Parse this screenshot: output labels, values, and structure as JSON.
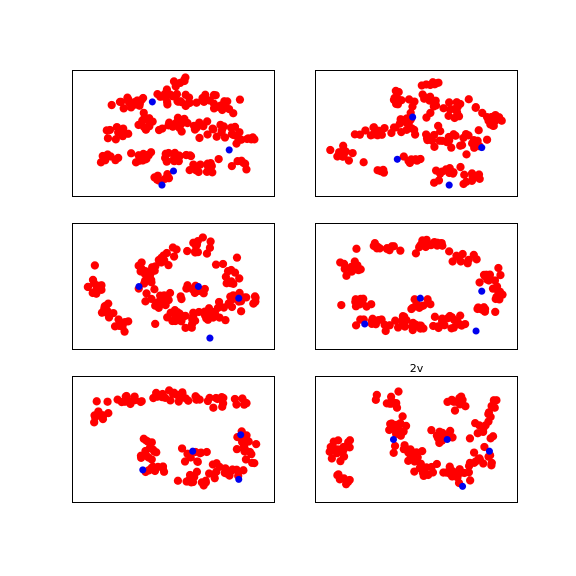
{
  "colors": {
    "points": "#ff0000",
    "highlight": "#0000ee"
  },
  "chart_data": [
    {
      "type": "scatter",
      "title": "",
      "xlabel": "",
      "ylabel": "",
      "axis_ticks": "none",
      "grid": false,
      "xlim": [
        0,
        100
      ],
      "ylim": [
        0,
        100
      ],
      "clusters": [
        {
          "cx": 28,
          "cy": 76,
          "rx": 9,
          "ry": 6,
          "n": 16
        },
        {
          "cx": 48,
          "cy": 82,
          "rx": 7,
          "ry": 5,
          "n": 12
        },
        {
          "cx": 63,
          "cy": 78,
          "rx": 10,
          "ry": 6,
          "n": 16
        },
        {
          "cx": 78,
          "cy": 74,
          "rx": 8,
          "ry": 6,
          "n": 12
        },
        {
          "cx": 20,
          "cy": 50,
          "rx": 8,
          "ry": 6,
          "n": 12
        },
        {
          "cx": 38,
          "cy": 58,
          "rx": 10,
          "ry": 7,
          "n": 16
        },
        {
          "cx": 56,
          "cy": 56,
          "rx": 9,
          "ry": 7,
          "n": 14
        },
        {
          "cx": 74,
          "cy": 52,
          "rx": 10,
          "ry": 7,
          "n": 16
        },
        {
          "cx": 88,
          "cy": 46,
          "rx": 6,
          "ry": 6,
          "n": 10
        },
        {
          "cx": 30,
          "cy": 30,
          "rx": 10,
          "ry": 5,
          "n": 14
        },
        {
          "cx": 52,
          "cy": 30,
          "rx": 11,
          "ry": 6,
          "n": 16
        },
        {
          "cx": 68,
          "cy": 22,
          "rx": 8,
          "ry": 7,
          "n": 12
        },
        {
          "cx": 42,
          "cy": 12,
          "rx": 6,
          "ry": 4,
          "n": 8
        },
        {
          "cx": 85,
          "cy": 25,
          "rx": 6,
          "ry": 5,
          "n": 8
        },
        {
          "cx": 15,
          "cy": 30,
          "rx": 5,
          "ry": 4,
          "n": 7
        },
        {
          "cx": 54,
          "cy": 94,
          "rx": 5,
          "ry": 3,
          "n": 6
        }
      ],
      "highlights": [
        {
          "x": 39,
          "y": 77
        },
        {
          "x": 79,
          "y": 36
        },
        {
          "x": 50,
          "y": 18
        },
        {
          "x": 44,
          "y": 6
        }
      ]
    },
    {
      "type": "scatter",
      "title": "",
      "xlabel": "",
      "ylabel": "",
      "axis_ticks": "none",
      "grid": false,
      "xlim": [
        0,
        100
      ],
      "ylim": [
        0,
        100
      ],
      "clusters": [
        {
          "cx": 12,
          "cy": 32,
          "rx": 7,
          "ry": 6,
          "n": 12
        },
        {
          "cx": 28,
          "cy": 52,
          "rx": 9,
          "ry": 7,
          "n": 14
        },
        {
          "cx": 46,
          "cy": 58,
          "rx": 10,
          "ry": 10,
          "n": 18
        },
        {
          "cx": 62,
          "cy": 48,
          "rx": 8,
          "ry": 8,
          "n": 14
        },
        {
          "cx": 78,
          "cy": 40,
          "rx": 9,
          "ry": 10,
          "n": 16
        },
        {
          "cx": 90,
          "cy": 62,
          "rx": 6,
          "ry": 8,
          "n": 12
        },
        {
          "cx": 72,
          "cy": 72,
          "rx": 10,
          "ry": 6,
          "n": 14
        },
        {
          "cx": 56,
          "cy": 78,
          "rx": 8,
          "ry": 5,
          "n": 10
        },
        {
          "cx": 38,
          "cy": 80,
          "rx": 8,
          "ry": 5,
          "n": 10
        },
        {
          "cx": 66,
          "cy": 14,
          "rx": 9,
          "ry": 6,
          "n": 12
        },
        {
          "cx": 80,
          "cy": 12,
          "rx": 5,
          "ry": 5,
          "n": 8
        },
        {
          "cx": 58,
          "cy": 92,
          "rx": 6,
          "ry": 3,
          "n": 7
        },
        {
          "cx": 48,
          "cy": 28,
          "rx": 6,
          "ry": 5,
          "n": 9
        },
        {
          "cx": 31,
          "cy": 18,
          "rx": 4,
          "ry": 4,
          "n": 5
        }
      ],
      "highlights": [
        {
          "x": 48,
          "y": 64
        },
        {
          "x": 40,
          "y": 28
        },
        {
          "x": 84,
          "y": 38
        },
        {
          "x": 67,
          "y": 6
        }
      ]
    },
    {
      "type": "scatter",
      "title": "",
      "xlabel": "",
      "ylabel": "",
      "axis_ticks": "none",
      "grid": false,
      "xlim": [
        0,
        100
      ],
      "ylim": [
        0,
        100
      ],
      "clusters": [
        {
          "cx": 10,
          "cy": 50,
          "rx": 4,
          "ry": 10,
          "n": 12
        },
        {
          "cx": 16,
          "cy": 30,
          "rx": 5,
          "ry": 8,
          "n": 10
        },
        {
          "cx": 22,
          "cy": 16,
          "rx": 5,
          "ry": 5,
          "n": 7
        },
        {
          "cx": 35,
          "cy": 58,
          "rx": 6,
          "ry": 12,
          "n": 16
        },
        {
          "cx": 42,
          "cy": 36,
          "rx": 8,
          "ry": 10,
          "n": 16
        },
        {
          "cx": 55,
          "cy": 22,
          "rx": 10,
          "ry": 8,
          "n": 18
        },
        {
          "cx": 72,
          "cy": 26,
          "rx": 10,
          "ry": 8,
          "n": 18
        },
        {
          "cx": 84,
          "cy": 40,
          "rx": 6,
          "ry": 8,
          "n": 12
        },
        {
          "cx": 80,
          "cy": 62,
          "rx": 5,
          "ry": 12,
          "n": 12
        },
        {
          "cx": 62,
          "cy": 84,
          "rx": 10,
          "ry": 6,
          "n": 14
        },
        {
          "cx": 46,
          "cy": 74,
          "rx": 6,
          "ry": 6,
          "n": 10
        },
        {
          "cx": 60,
          "cy": 46,
          "rx": 8,
          "ry": 6,
          "n": 12
        },
        {
          "cx": 92,
          "cy": 38,
          "rx": 3,
          "ry": 4,
          "n": 5
        }
      ],
      "highlights": [
        {
          "x": 32,
          "y": 50
        },
        {
          "x": 63,
          "y": 50
        },
        {
          "x": 84,
          "y": 40
        },
        {
          "x": 69,
          "y": 6
        }
      ]
    },
    {
      "type": "scatter",
      "title": "",
      "xlabel": "",
      "ylabel": "",
      "axis_ticks": "none",
      "grid": false,
      "xlim": [
        0,
        100
      ],
      "ylim": [
        0,
        100
      ],
      "clusters": [
        {
          "cx": 16,
          "cy": 68,
          "rx": 8,
          "ry": 4,
          "n": 10
        },
        {
          "cx": 34,
          "cy": 82,
          "rx": 12,
          "ry": 4,
          "n": 14
        },
        {
          "cx": 56,
          "cy": 86,
          "rx": 10,
          "ry": 4,
          "n": 12
        },
        {
          "cx": 74,
          "cy": 76,
          "rx": 8,
          "ry": 5,
          "n": 10
        },
        {
          "cx": 86,
          "cy": 58,
          "rx": 6,
          "ry": 7,
          "n": 10
        },
        {
          "cx": 92,
          "cy": 44,
          "rx": 4,
          "ry": 8,
          "n": 8
        },
        {
          "cx": 20,
          "cy": 34,
          "rx": 8,
          "ry": 6,
          "n": 12
        },
        {
          "cx": 30,
          "cy": 18,
          "rx": 10,
          "ry": 6,
          "n": 14
        },
        {
          "cx": 50,
          "cy": 16,
          "rx": 12,
          "ry": 6,
          "n": 16
        },
        {
          "cx": 70,
          "cy": 20,
          "rx": 12,
          "ry": 7,
          "n": 16
        },
        {
          "cx": 84,
          "cy": 30,
          "rx": 6,
          "ry": 5,
          "n": 8
        },
        {
          "cx": 52,
          "cy": 36,
          "rx": 6,
          "ry": 6,
          "n": 10
        },
        {
          "cx": 44,
          "cy": 24,
          "rx": 4,
          "ry": 4,
          "n": 5
        }
      ],
      "highlights": [
        {
          "x": 52,
          "y": 40
        },
        {
          "x": 84,
          "y": 46
        },
        {
          "x": 23,
          "y": 18
        },
        {
          "x": 81,
          "y": 12
        }
      ]
    },
    {
      "type": "scatter",
      "title": "",
      "xlabel": "",
      "ylabel": "",
      "axis_ticks": "none",
      "grid": false,
      "xlim": [
        0,
        100
      ],
      "ylim": [
        0,
        100
      ],
      "clusters": [
        {
          "cx": 12,
          "cy": 70,
          "rx": 5,
          "ry": 6,
          "n": 9
        },
        {
          "cx": 26,
          "cy": 82,
          "rx": 10,
          "ry": 5,
          "n": 14
        },
        {
          "cx": 44,
          "cy": 88,
          "rx": 12,
          "ry": 4,
          "n": 14
        },
        {
          "cx": 62,
          "cy": 86,
          "rx": 10,
          "ry": 4,
          "n": 12
        },
        {
          "cx": 76,
          "cy": 82,
          "rx": 5,
          "ry": 6,
          "n": 8
        },
        {
          "cx": 86,
          "cy": 84,
          "rx": 4,
          "ry": 4,
          "n": 5
        },
        {
          "cx": 36,
          "cy": 42,
          "rx": 5,
          "ry": 12,
          "n": 14
        },
        {
          "cx": 40,
          "cy": 24,
          "rx": 8,
          "ry": 5,
          "n": 10
        },
        {
          "cx": 58,
          "cy": 16,
          "rx": 12,
          "ry": 5,
          "n": 16
        },
        {
          "cx": 76,
          "cy": 22,
          "rx": 8,
          "ry": 8,
          "n": 14
        },
        {
          "cx": 88,
          "cy": 40,
          "rx": 5,
          "ry": 10,
          "n": 12
        },
        {
          "cx": 60,
          "cy": 36,
          "rx": 6,
          "ry": 6,
          "n": 10
        },
        {
          "cx": 86,
          "cy": 52,
          "rx": 4,
          "ry": 5,
          "n": 6
        }
      ],
      "highlights": [
        {
          "x": 34,
          "y": 24
        },
        {
          "x": 60,
          "y": 40
        },
        {
          "x": 85,
          "y": 54
        },
        {
          "x": 84,
          "y": 16
        }
      ]
    },
    {
      "type": "scatter",
      "title": "2v",
      "xlabel": "",
      "ylabel": "",
      "axis_ticks": "none",
      "grid": false,
      "xlim": [
        0,
        100
      ],
      "ylim": [
        0,
        100
      ],
      "clusters": [
        {
          "cx": 8,
          "cy": 40,
          "rx": 3,
          "ry": 12,
          "n": 12
        },
        {
          "cx": 12,
          "cy": 18,
          "rx": 3,
          "ry": 7,
          "n": 8
        },
        {
          "cx": 13,
          "cy": 44,
          "rx": 3,
          "ry": 7,
          "n": 6
        },
        {
          "cx": 36,
          "cy": 82,
          "rx": 6,
          "ry": 8,
          "n": 12
        },
        {
          "cx": 40,
          "cy": 58,
          "rx": 6,
          "ry": 10,
          "n": 14
        },
        {
          "cx": 48,
          "cy": 38,
          "rx": 8,
          "ry": 8,
          "n": 14
        },
        {
          "cx": 56,
          "cy": 22,
          "rx": 10,
          "ry": 7,
          "n": 16
        },
        {
          "cx": 72,
          "cy": 20,
          "rx": 10,
          "ry": 8,
          "n": 16
        },
        {
          "cx": 84,
          "cy": 34,
          "rx": 7,
          "ry": 8,
          "n": 12
        },
        {
          "cx": 84,
          "cy": 58,
          "rx": 5,
          "ry": 10,
          "n": 12
        },
        {
          "cx": 72,
          "cy": 82,
          "rx": 6,
          "ry": 6,
          "n": 10
        },
        {
          "cx": 64,
          "cy": 54,
          "rx": 6,
          "ry": 6,
          "n": 10
        },
        {
          "cx": 90,
          "cy": 78,
          "rx": 3,
          "ry": 6,
          "n": 6
        }
      ],
      "highlights": [
        {
          "x": 38,
          "y": 50
        },
        {
          "x": 66,
          "y": 50
        },
        {
          "x": 88,
          "y": 40
        },
        {
          "x": 74,
          "y": 10
        }
      ]
    }
  ]
}
